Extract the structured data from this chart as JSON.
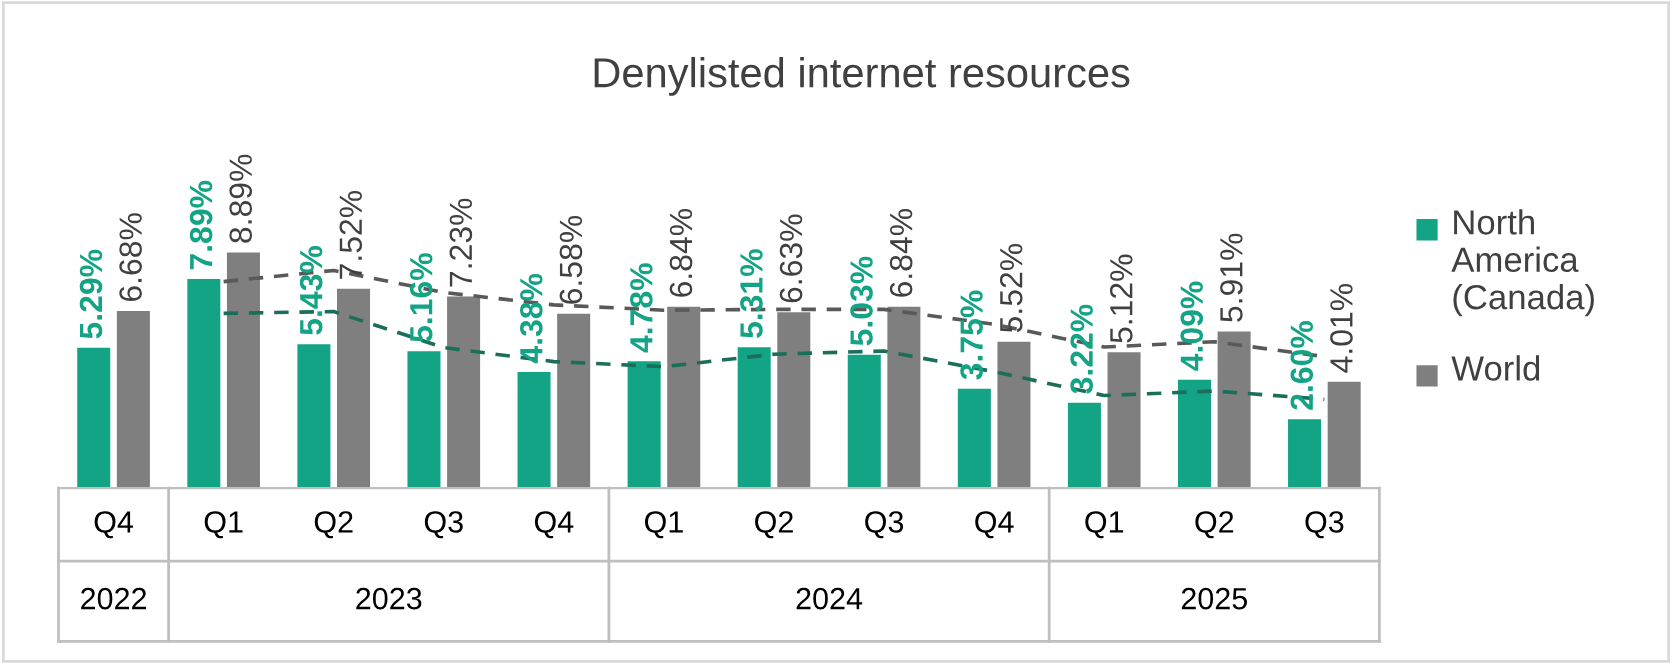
{
  "chart_data": {
    "type": "bar",
    "title": "Denylisted internet resources",
    "categories": [
      "Q4",
      "Q1",
      "Q2",
      "Q3",
      "Q4",
      "Q1",
      "Q2",
      "Q3",
      "Q4",
      "Q1",
      "Q2",
      "Q3"
    ],
    "annotations": [
      "2022",
      "2023",
      "2024",
      "2025"
    ],
    "series": [
      {
        "name": "North America (Canada)",
        "color": "#13a385",
        "values": [
          5.29,
          7.89,
          5.43,
          5.16,
          4.38,
          4.78,
          5.31,
          5.03,
          3.75,
          3.22,
          4.09,
          2.6
        ],
        "value_labels": [
          "5.29%",
          "7.89%",
          "5.43%",
          "5.16%",
          "4.38%",
          "4.78%",
          "5.31%",
          "5.03%",
          "3.75%",
          "3.22%",
          "4.09%",
          "2.60%"
        ]
      },
      {
        "name": "World",
        "color": "#7f7f7f",
        "values": [
          6.68,
          8.89,
          7.52,
          7.23,
          6.58,
          6.84,
          6.63,
          6.84,
          5.52,
          5.12,
          5.91,
          4.01
        ],
        "value_labels": [
          "6.68%",
          "8.89%",
          "7.52%",
          "7.23%",
          "6.58%",
          "6.84%",
          "6.63%",
          "6.84%",
          "5.52%",
          "5.12%",
          "5.91%",
          "4.01%"
        ]
      },
      {
        "type": "line",
        "color": "#1b6f5a",
        "line_style": "dashed",
        "values": [
          null,
          6.59,
          6.66,
          5.3,
          4.77,
          4.58,
          5.05,
          5.17,
          4.39,
          3.49,
          3.66,
          3.35
        ]
      },
      {
        "type": "line",
        "color": "#595959",
        "line_style": "dashed",
        "values": [
          null,
          7.79,
          8.21,
          7.38,
          6.91,
          6.71,
          6.74,
          6.74,
          6.18,
          5.32,
          5.52,
          4.96
        ]
      }
    ],
    "legend": "right"
  }
}
